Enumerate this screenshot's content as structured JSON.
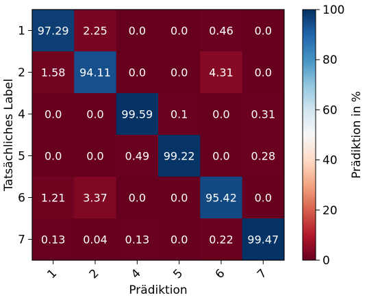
{
  "chart_data": {
    "type": "heatmap",
    "title": "",
    "xlabel": "Prädiktion",
    "ylabel": "Tatsächliches Label",
    "x_categories": [
      "1",
      "2",
      "4",
      "5",
      "6",
      "7"
    ],
    "y_categories": [
      "1",
      "2",
      "4",
      "5",
      "6",
      "7"
    ],
    "values": [
      [
        97.29,
        2.25,
        0.0,
        0.0,
        0.46,
        0.0
      ],
      [
        1.58,
        94.11,
        0.0,
        0.0,
        4.31,
        0.0
      ],
      [
        0.0,
        0.0,
        99.59,
        0.1,
        0.0,
        0.31
      ],
      [
        0.0,
        0.0,
        0.49,
        99.22,
        0.0,
        0.28
      ],
      [
        1.21,
        3.37,
        0.0,
        0.0,
        95.42,
        0.0
      ],
      [
        0.13,
        0.04,
        0.13,
        0.0,
        0.22,
        99.47
      ]
    ],
    "value_labels": [
      [
        "97.29",
        "2.25",
        "0.0",
        "0.0",
        "0.46",
        "0.0"
      ],
      [
        "1.58",
        "94.11",
        "0.0",
        "0.0",
        "4.31",
        "0.0"
      ],
      [
        "0.0",
        "0.0",
        "99.59",
        "0.1",
        "0.0",
        "0.31"
      ],
      [
        "0.0",
        "0.0",
        "0.49",
        "99.22",
        "0.0",
        "0.28"
      ],
      [
        "1.21",
        "3.37",
        "0.0",
        "0.0",
        "95.42",
        "0.0"
      ],
      [
        "0.13",
        "0.04",
        "0.13",
        "0.0",
        "0.22",
        "99.47"
      ]
    ],
    "colorbar": {
      "label": "Prädiktion in %",
      "range": [
        0,
        100
      ],
      "ticks": [
        0,
        20,
        40,
        60,
        80,
        100
      ],
      "colormap": "RdBu"
    },
    "colors": {
      "low": "#67001f",
      "mid": "#f7f7f7",
      "high": "#053061"
    }
  }
}
